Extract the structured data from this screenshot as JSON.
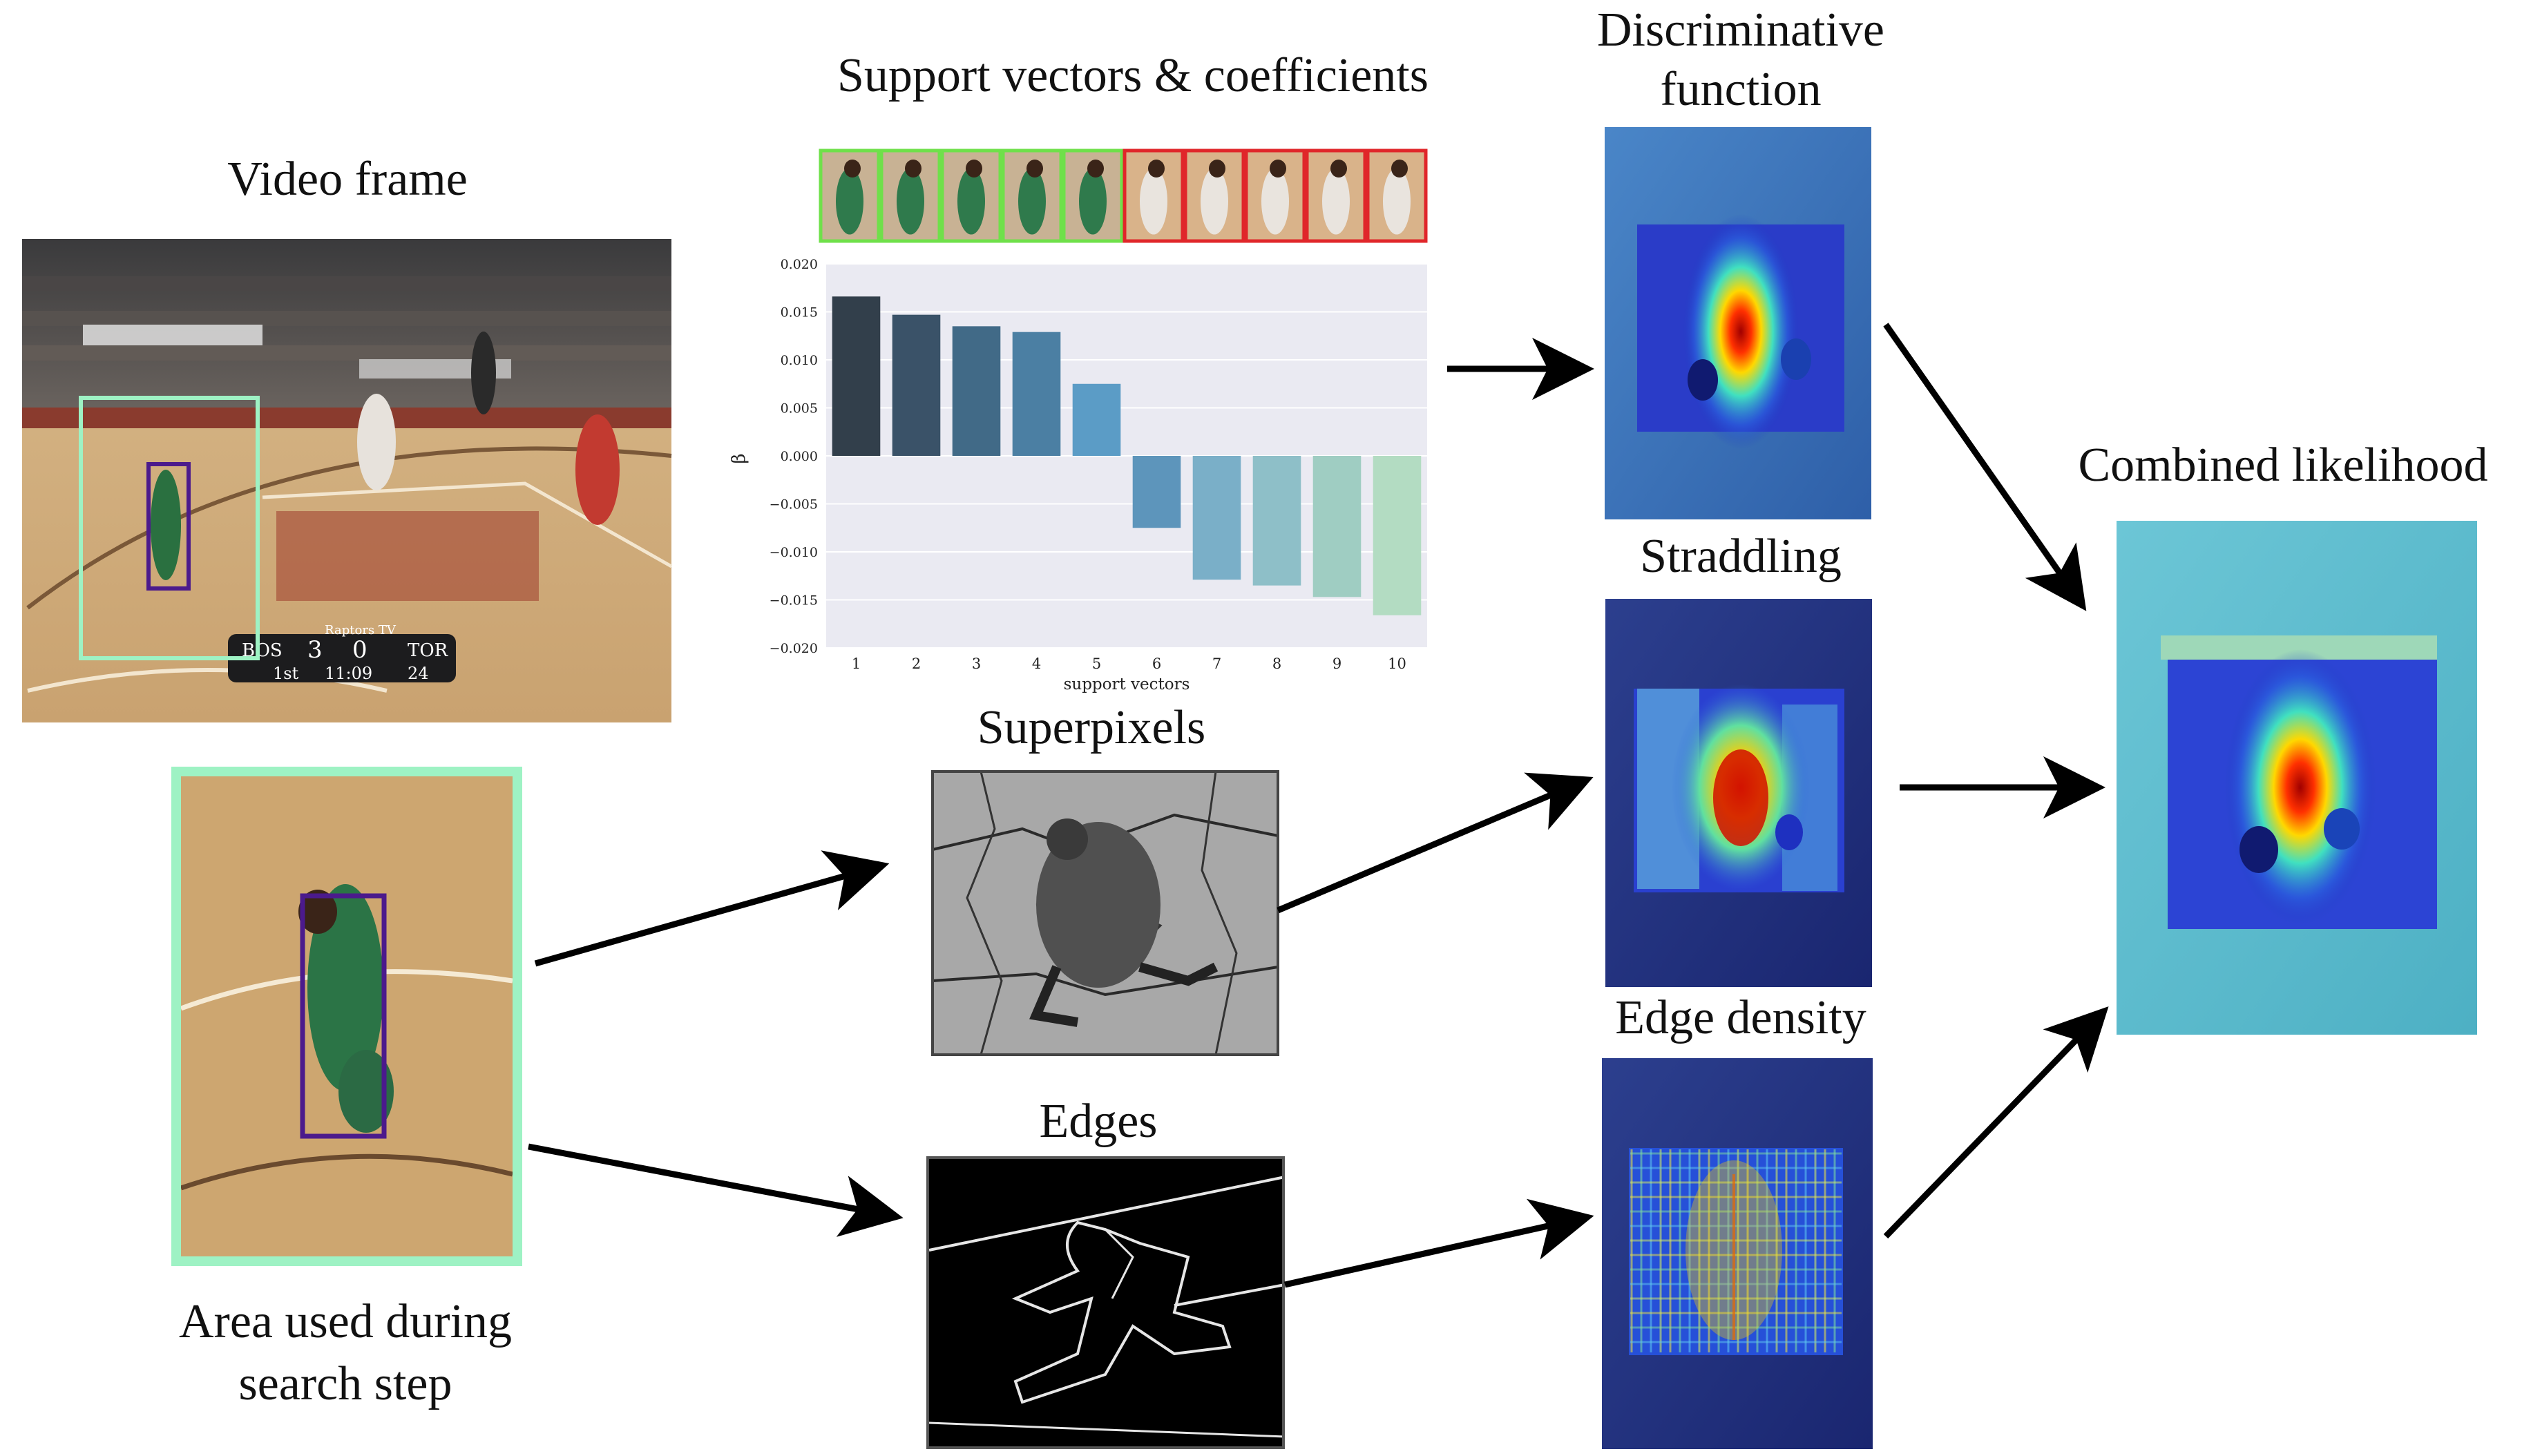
{
  "labels": {
    "video_frame": "Video frame",
    "area_line1": "Area used during",
    "area_line2": "search step",
    "support_vectors": "Support vectors & coefficients",
    "superpixels": "Superpixels",
    "edges": "Edges",
    "discriminative_line1": "Discriminative",
    "discriminative_line2": "function",
    "straddling": "Straddling",
    "edge_density": "Edge density",
    "combined": "Combined likelihood"
  },
  "scoreboard": {
    "left_team": "BOS",
    "left_score": "3",
    "right_score": "0",
    "right_team": "TOR",
    "quarter": "1st",
    "clock": "11:09",
    "shot_clock": "24",
    "network": "Raptors TV"
  },
  "support_vector_colors": [
    "positive",
    "positive",
    "positive",
    "positive",
    "positive",
    "negative",
    "negative",
    "negative",
    "negative",
    "negative"
  ],
  "colors": {
    "positive_frame": "#6fe04a",
    "negative_frame": "#e0262a",
    "search_area": "#9ef2c4",
    "target_box": "#4b1a8c"
  },
  "chart_data": {
    "type": "bar",
    "categories": [
      "1",
      "2",
      "3",
      "4",
      "5",
      "6",
      "7",
      "8",
      "9",
      "10"
    ],
    "values": [
      0.0166,
      0.0147,
      0.0135,
      0.0129,
      0.0075,
      -0.0075,
      -0.0129,
      -0.0135,
      -0.0147,
      -0.0166
    ],
    "bar_colors": [
      "#323f4b",
      "#3a5268",
      "#416a87",
      "#4b7fa3",
      "#5b9cc6",
      "#5d95bb",
      "#7aafc8",
      "#8ebfc8",
      "#9fcdc2",
      "#b3dcc2"
    ],
    "xlabel": "support vectors",
    "ylabel": "β",
    "ylim": [
      -0.02,
      0.02
    ],
    "yticks": [
      "0.020",
      "0.015",
      "0.010",
      "0.005",
      "0.000",
      "−0.005",
      "−0.010",
      "−0.015",
      "−0.020"
    ],
    "grid": true
  }
}
